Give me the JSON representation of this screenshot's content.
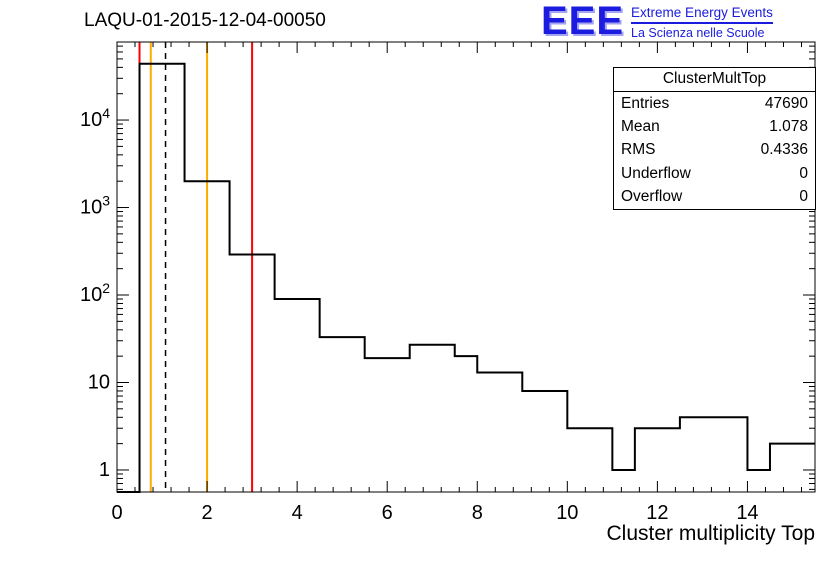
{
  "page": {
    "title": "LAQU-01-2015-12-04-00050"
  },
  "logo": {
    "acronym": "EEE",
    "line1": "Extreme Energy Events",
    "line2": "La Scienza nelle Scuole",
    "color": "#1b1bdd"
  },
  "stats": {
    "title": "ClusterMultTop",
    "rows": [
      {
        "label": "Entries",
        "value": "47690"
      },
      {
        "label": "Mean",
        "value": "1.078"
      },
      {
        "label": "RMS",
        "value": "0.4336"
      },
      {
        "label": "Underflow",
        "value": "0"
      },
      {
        "label": "Overflow",
        "value": "0"
      }
    ]
  },
  "chart_data": {
    "type": "bar",
    "title": "LAQU-01-2015-12-04-00050",
    "xlabel": "Cluster multiplicity Top",
    "ylabel": "",
    "y_scale": "log",
    "grid": false,
    "legend": "none",
    "xlim": [
      0,
      15.5
    ],
    "ylim": [
      0.56,
      78000
    ],
    "bin_edges_start": 0,
    "bin_width": 0.5,
    "counts": [
      0,
      44000,
      44000,
      2000,
      2000,
      290,
      290,
      90,
      90,
      33,
      33,
      19,
      19,
      27,
      27,
      20,
      13,
      13,
      8,
      8,
      3,
      3,
      1,
      3,
      3,
      4,
      4,
      4,
      1,
      2,
      2
    ],
    "x_major_ticks": [
      0,
      2,
      4,
      6,
      8,
      10,
      12,
      14
    ],
    "y_major_ticks": [
      1,
      10,
      100,
      1000,
      10000
    ],
    "line_color": "#000000",
    "markers": [
      {
        "name": "lower-error-limit",
        "x": 0.5,
        "color": "#ff0000",
        "style": "solid"
      },
      {
        "name": "lower-warn-limit",
        "x": 0.75,
        "color": "#ffaa00",
        "style": "solid"
      },
      {
        "name": "mean-line",
        "x": 1.078,
        "color": "#000000",
        "style": "dashed"
      },
      {
        "name": "upper-warn-limit",
        "x": 2,
        "color": "#ffaa00",
        "style": "solid"
      },
      {
        "name": "upper-error-limit",
        "x": 3,
        "color": "#ff0000",
        "style": "solid"
      }
    ]
  }
}
